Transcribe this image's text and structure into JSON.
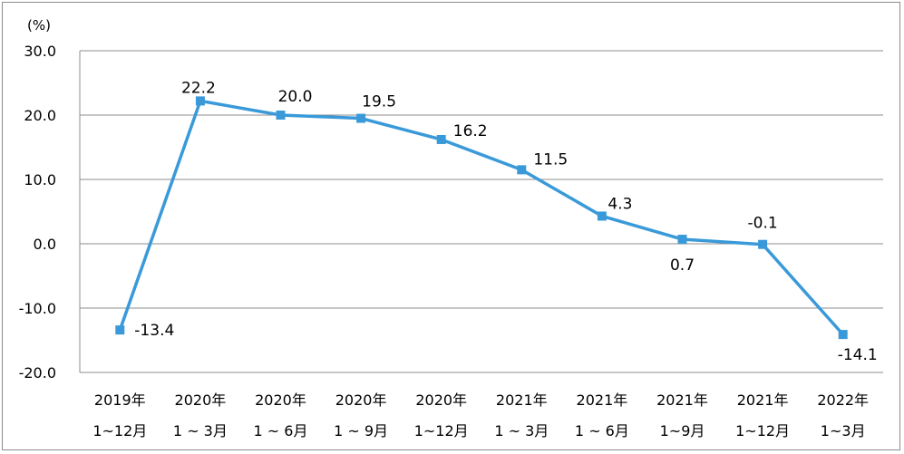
{
  "chart_data": {
    "type": "line",
    "title": "",
    "xlabel": "",
    "ylabel": "",
    "y_unit": "(%)",
    "ylim": [
      -20,
      30
    ],
    "yticks": [
      30,
      20,
      10,
      0,
      -10,
      -20
    ],
    "ytick_labels": [
      "30.0",
      "20.0",
      "10.0",
      "0.0",
      "-10.0",
      "-20.0"
    ],
    "grid": true,
    "legend": "none",
    "categories": [
      [
        "2019年",
        "1~12月"
      ],
      [
        "2020年",
        "1 ~ 3月"
      ],
      [
        "2020年",
        "1 ~ 6月"
      ],
      [
        "2020年",
        "1 ~ 9月"
      ],
      [
        "2020年",
        "1~12月"
      ],
      [
        "2021年",
        "1 ~ 3月"
      ],
      [
        "2021年",
        "1 ~ 6月"
      ],
      [
        "2021年",
        "1~9月"
      ],
      [
        "2021年",
        "1~12月"
      ],
      [
        "2022年",
        "1~3月"
      ]
    ],
    "series": [
      {
        "values": [
          -13.4,
          22.2,
          20.0,
          19.5,
          16.2,
          11.5,
          4.3,
          0.7,
          -0.1,
          -14.1
        ],
        "labels": [
          "-13.4",
          "22.2",
          "20.0",
          "19.5",
          "16.2",
          "11.5",
          "4.3",
          "0.7",
          "-0.1",
          "-14.1"
        ],
        "color": "#3a9ad9"
      }
    ],
    "colors": {
      "line": "#3a9ad9",
      "grid": "#8c8c8c",
      "axis": "#8c8c8c"
    }
  }
}
